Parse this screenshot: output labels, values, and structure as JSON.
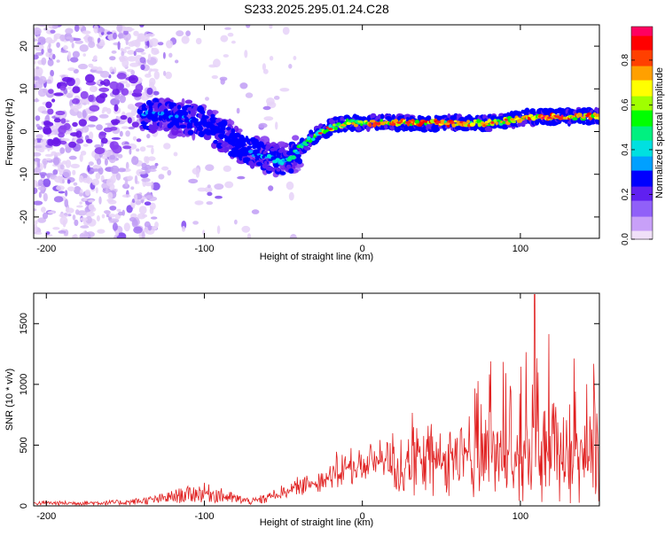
{
  "page_title": "S233.2025.295.01.24.C28",
  "chart_data": [
    {
      "type": "heatmap",
      "xlabel": "Height of straight line (km)",
      "ylabel": "Frequency (Hz)",
      "xlim": [
        -208,
        150
      ],
      "ylim": [
        -25,
        25
      ],
      "xticks": [
        -200,
        -100,
        0,
        100
      ],
      "yticks": [
        -20,
        -10,
        0,
        10,
        20
      ],
      "grid": false,
      "colorbar": {
        "label": "Normalized spectral amplitude",
        "range": [
          0,
          0.95
        ],
        "ticks": [
          0.0,
          0.2,
          0.4,
          0.6,
          0.8
        ],
        "colormap": [
          "#f0e0f8",
          "#c8a0f8",
          "#9060f8",
          "#6020f0",
          "#0000ff",
          "#00a0ff",
          "#00e0e0",
          "#00f080",
          "#00ff00",
          "#a0ff00",
          "#ffff00",
          "#ffa000",
          "#ff4000",
          "#ff0000",
          "#ff0060"
        ]
      },
      "ridge": {
        "height_km": [
          -140,
          -130,
          -120,
          -110,
          -100,
          -90,
          -80,
          -70,
          -60,
          -50,
          -45,
          -40,
          -30,
          -20,
          -10,
          0,
          10,
          20,
          30,
          40,
          50,
          60,
          70,
          80,
          90,
          100,
          110,
          120,
          130,
          140,
          150
        ],
        "frequency_hz": [
          4,
          4,
          3,
          3,
          2,
          0,
          -3,
          -5,
          -6,
          -7,
          -6,
          -4,
          -1,
          1,
          2,
          2,
          2,
          2,
          2,
          2,
          2,
          2,
          2,
          2,
          2.5,
          3,
          3.5,
          3.5,
          3.5,
          3.5,
          3.5
        ],
        "amplitude": [
          0.3,
          0.35,
          0.3,
          0.3,
          0.25,
          0.2,
          0.2,
          0.3,
          0.35,
          0.4,
          0.45,
          0.5,
          0.55,
          0.6,
          0.65,
          0.7,
          0.75,
          0.75,
          0.75,
          0.8,
          0.75,
          0.75,
          0.7,
          0.7,
          0.7,
          0.75,
          0.8,
          0.85,
          0.8,
          0.8,
          0.8
        ]
      },
      "noise_region_km": [
        -208,
        -130
      ],
      "noise_amplitude": 0.1
    },
    {
      "type": "line",
      "xlabel": "Height of straight line (km)",
      "ylabel": "SNR (10 * v/v)",
      "xlim": [
        -208,
        150
      ],
      "ylim": [
        0,
        1750
      ],
      "xticks": [
        -200,
        -100,
        0,
        100
      ],
      "yticks": [
        0,
        500,
        1000,
        1500
      ],
      "grid": false,
      "series": [
        {
          "name": "SNR",
          "color": "#e02020",
          "envelope_x_km": [
            -208,
            -180,
            -150,
            -130,
            -115,
            -100,
            -90,
            -80,
            -70,
            -60,
            -50,
            -40,
            -30,
            -20,
            -10,
            0,
            10,
            20,
            30,
            40,
            50,
            60,
            70,
            80,
            90,
            100,
            105,
            110,
            120,
            130,
            140,
            150
          ],
          "envelope_y": [
            40,
            40,
            50,
            90,
            150,
            190,
            150,
            100,
            60,
            110,
            170,
            230,
            300,
            380,
            450,
            500,
            560,
            620,
            680,
            700,
            720,
            740,
            780,
            820,
            870,
            900,
            950,
            1000,
            950,
            900,
            850,
            800
          ],
          "peak": {
            "x_km": 109,
            "y": 1740
          },
          "noise_floor_y": [
            10,
            20,
            30,
            40,
            60,
            80,
            100,
            120,
            150,
            150,
            150,
            160,
            170,
            200,
            200,
            200,
            200,
            200,
            200,
            200
          ]
        }
      ]
    }
  ]
}
